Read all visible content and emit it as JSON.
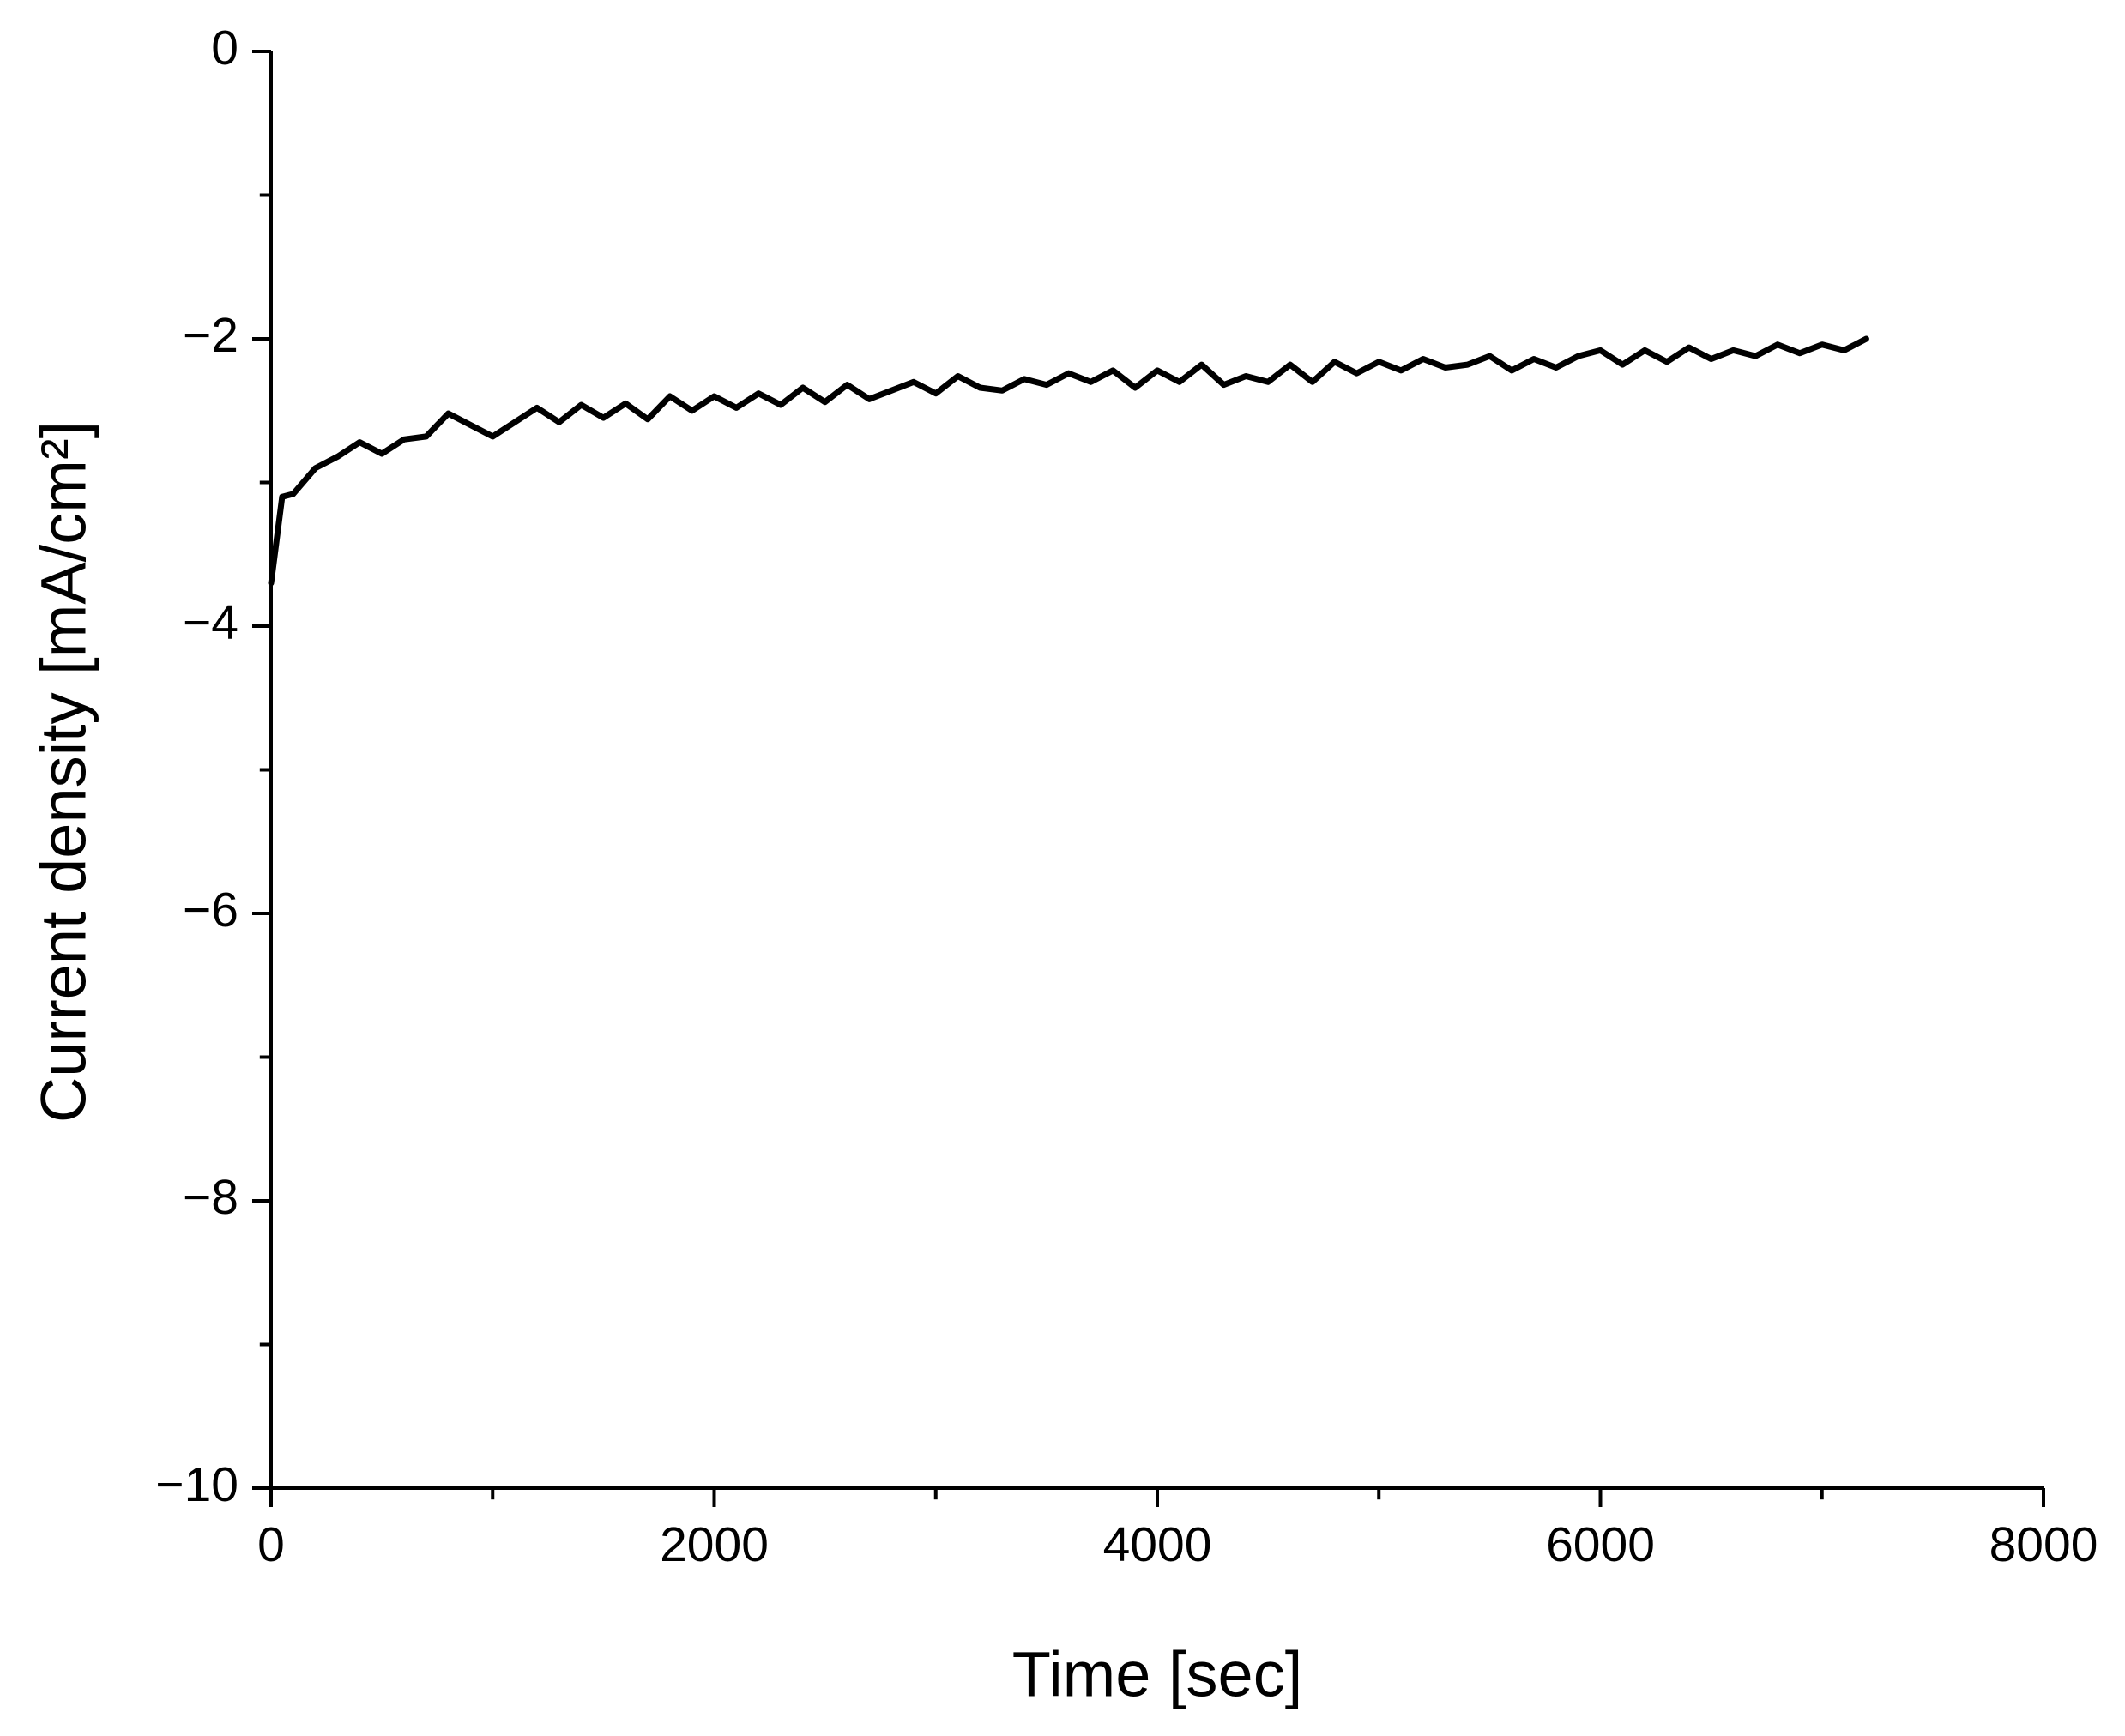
{
  "chart_data": {
    "type": "line",
    "x_label": "Time [sec]",
    "y_label": "Current density [mA/cm²]",
    "xlim": [
      0,
      8000
    ],
    "xticks": [
      0,
      2000,
      4000,
      6000,
      8000
    ],
    "ylim": [
      -10,
      0
    ],
    "yticks": [
      {
        "value": -10,
        "label": "−10"
      },
      {
        "value": -8,
        "label": "−8"
      },
      {
        "value": -6,
        "label": "−6"
      },
      {
        "value": -4,
        "label": "−4"
      },
      {
        "value": -2,
        "label": "−2"
      },
      0
    ],
    "grid": false,
    "series": [
      {
        "color": "#000000",
        "x": [
          0,
          50,
          100,
          200,
          300,
          400,
          500,
          600,
          700,
          800,
          900,
          1000,
          1100,
          1200,
          1300,
          1400,
          1500,
          1600,
          1700,
          1800,
          1900,
          2000,
          2100,
          2200,
          2300,
          2400,
          2500,
          2600,
          2700,
          2800,
          2900,
          3000,
          3100,
          3200,
          3300,
          3400,
          3500,
          3600,
          3700,
          3800,
          3900,
          4000,
          4100,
          4200,
          4300,
          4400,
          4500,
          4600,
          4700,
          4800,
          4900,
          5000,
          5100,
          5200,
          5300,
          5400,
          5500,
          5600,
          5700,
          5800,
          5900,
          6000,
          6100,
          6200,
          6300,
          6400,
          6500,
          6600,
          6700,
          6800,
          6900,
          7000,
          7100,
          7200
        ],
        "values": [
          -3.7,
          -3.1,
          -3.08,
          -2.9,
          -2.82,
          -2.72,
          -2.8,
          -2.7,
          -2.68,
          -2.52,
          -2.6,
          -2.68,
          -2.58,
          -2.48,
          -2.58,
          -2.46,
          -2.55,
          -2.45,
          -2.56,
          -2.4,
          -2.5,
          -2.4,
          -2.48,
          -2.38,
          -2.46,
          -2.34,
          -2.44,
          -2.32,
          -2.42,
          -2.36,
          -2.3,
          -2.38,
          -2.26,
          -2.34,
          -2.36,
          -2.28,
          -2.32,
          -2.24,
          -2.3,
          -2.22,
          -2.34,
          -2.22,
          -2.3,
          -2.18,
          -2.32,
          -2.26,
          -2.3,
          -2.18,
          -2.3,
          -2.16,
          -2.24,
          -2.16,
          -2.22,
          -2.14,
          -2.2,
          -2.18,
          -2.12,
          -2.22,
          -2.14,
          -2.2,
          -2.12,
          -2.08,
          -2.18,
          -2.08,
          -2.16,
          -2.06,
          -2.14,
          -2.08,
          -2.12,
          -2.04,
          -2.1,
          -2.04,
          -2.08,
          -2.0
        ]
      }
    ]
  }
}
